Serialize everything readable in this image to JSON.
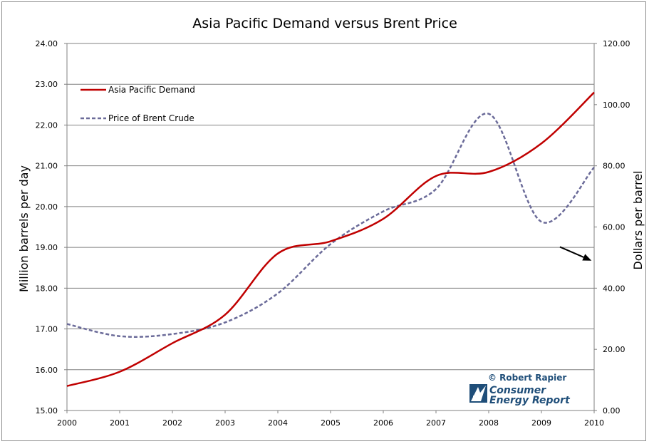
{
  "chart_data": {
    "type": "line",
    "title": "Asia Pacific Demand versus Brent Price",
    "xlabel": "",
    "ylabel_left": "Million barrels per day",
    "ylabel_right": "Dollars per barrel",
    "xlim": [
      2000,
      2010
    ],
    "ylim_left": [
      15.0,
      24.0
    ],
    "ylim_right": [
      0.0,
      120.0
    ],
    "x_ticks": [
      "2000",
      "2001",
      "2002",
      "2003",
      "2004",
      "2005",
      "2006",
      "2007",
      "2008",
      "2009",
      "2010"
    ],
    "y_left_ticks": [
      "15.00",
      "16.00",
      "17.00",
      "18.00",
      "19.00",
      "20.00",
      "21.00",
      "22.00",
      "23.00",
      "24.00"
    ],
    "y_right_ticks": [
      "0.00",
      "20.00",
      "40.00",
      "60.00",
      "80.00",
      "100.00",
      "120.00"
    ],
    "grid": true,
    "legend_position": "top-left",
    "series": [
      {
        "name": "Asia Pacific Demand",
        "axis": "left",
        "color": "#c00000",
        "style": "solid",
        "x": [
          2000,
          2001,
          2002,
          2003,
          2004,
          2005,
          2006,
          2007,
          2008,
          2009,
          2010
        ],
        "values": [
          15.6,
          15.95,
          16.65,
          17.35,
          18.85,
          19.15,
          19.7,
          20.75,
          20.85,
          21.55,
          22.8
        ]
      },
      {
        "name": "Price of Brent Crude",
        "axis": "right",
        "color": "#6b6b99",
        "style": "dashed",
        "x": [
          2000,
          2001,
          2002,
          2003,
          2004,
          2005,
          2006,
          2007,
          2008,
          2009,
          2010
        ],
        "values": [
          28.3,
          24.3,
          25.0,
          28.8,
          38.3,
          54.4,
          65.1,
          72.4,
          97.0,
          61.7,
          79.5
        ]
      }
    ],
    "annotations": [
      {
        "type": "arrow",
        "description": "downward arrow toward right axis",
        "from": [
          2009.35,
          53.5
        ],
        "to": [
          2009.95,
          49.0
        ]
      }
    ]
  },
  "credit": {
    "copyright": "© Robert Rapier",
    "brand_line1": "Consumer",
    "brand_line2": "Energy Report"
  }
}
